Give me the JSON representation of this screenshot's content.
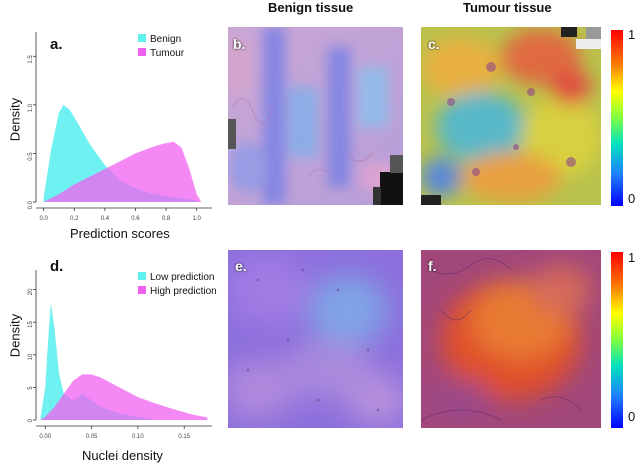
{
  "columns": {
    "benign_title": "Benign tissue",
    "tumour_title": "Tumour tissue"
  },
  "panels": {
    "a": {
      "label": "a."
    },
    "b": {
      "label": "b."
    },
    "c": {
      "label": "c."
    },
    "d": {
      "label": "d."
    },
    "e": {
      "label": "e."
    },
    "f": {
      "label": "f."
    }
  },
  "colorbars": [
    {
      "max_label": "1",
      "min_label": "0"
    },
    {
      "max_label": "1",
      "min_label": "0"
    }
  ],
  "colors": {
    "cyan": "#5ff0f0",
    "magenta": "#f060f0",
    "overlap": "#9b80e8"
  },
  "chart_data": [
    {
      "type": "area",
      "ylabel": "Density",
      "xlabel": "Prediction scores",
      "x_ticks": [
        "0.0",
        "0.2",
        "0.4",
        "0.6",
        "0.8",
        "1.0"
      ],
      "y_ticks": [
        "0.0",
        "0.5",
        "1.0",
        "1.5"
      ],
      "xlim": [
        -0.05,
        1.1
      ],
      "ylim": [
        0,
        1.75
      ],
      "legend_position": "top-right",
      "series": [
        {
          "name": "Benign",
          "color": "#5ff0f0",
          "x": [
            0.0,
            0.05,
            0.1,
            0.13,
            0.17,
            0.22,
            0.3,
            0.4,
            0.5,
            0.6,
            0.7,
            0.8,
            0.9,
            0.98,
            1.02
          ],
          "y": [
            0.05,
            0.55,
            0.92,
            1.0,
            0.95,
            0.82,
            0.6,
            0.38,
            0.22,
            0.14,
            0.09,
            0.06,
            0.04,
            0.02,
            0.0
          ]
        },
        {
          "name": "Tumour",
          "color": "#f060f0",
          "x": [
            0.0,
            0.1,
            0.2,
            0.3,
            0.4,
            0.5,
            0.6,
            0.7,
            0.78,
            0.85,
            0.9,
            0.95,
            1.0,
            1.03
          ],
          "y": [
            0.0,
            0.08,
            0.18,
            0.26,
            0.34,
            0.42,
            0.5,
            0.56,
            0.6,
            0.62,
            0.56,
            0.35,
            0.08,
            0.0
          ]
        }
      ]
    },
    {
      "type": "area",
      "ylabel": "Density",
      "xlabel": "Nuclei density",
      "x_ticks": [
        "0.00",
        "0.05",
        "0.10",
        "0.15"
      ],
      "x_tick_values": [
        0.0,
        0.05,
        0.1,
        0.15
      ],
      "y_ticks": [
        "0",
        "5",
        "10",
        "15",
        "20"
      ],
      "xlim": [
        -0.01,
        0.18
      ],
      "ylim": [
        0,
        23
      ],
      "legend_position": "top-right",
      "series": [
        {
          "name": "Low prediction",
          "color": "#5ff0f0",
          "x": [
            -0.005,
            0.0,
            0.003,
            0.006,
            0.01,
            0.015,
            0.02,
            0.03,
            0.04,
            0.05,
            0.06,
            0.08,
            0.1,
            0.12
          ],
          "y": [
            0.5,
            5,
            12,
            18,
            14,
            7,
            4,
            3,
            4,
            3,
            2,
            1,
            0.5,
            0.0
          ]
        },
        {
          "name": "High prediction",
          "color": "#f060f0",
          "x": [
            -0.005,
            0.0,
            0.01,
            0.02,
            0.03,
            0.04,
            0.05,
            0.06,
            0.08,
            0.1,
            0.12,
            0.14,
            0.16,
            0.175
          ],
          "y": [
            0.0,
            0.5,
            2,
            4,
            6,
            7,
            7,
            6.5,
            5,
            3.5,
            2.5,
            1.6,
            0.8,
            0.4
          ]
        }
      ]
    }
  ]
}
